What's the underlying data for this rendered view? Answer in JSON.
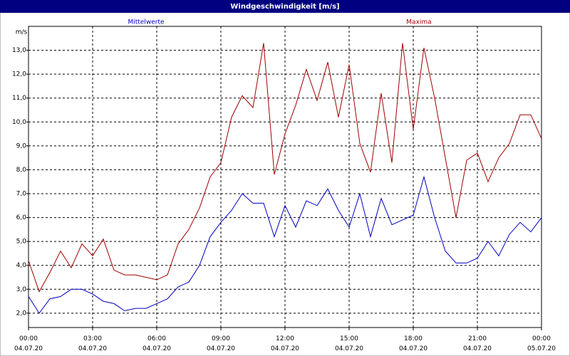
{
  "chart_data": {
    "type": "line",
    "title": "Windgeschwindigkeit [m/s]",
    "ylabel": "m/s",
    "grid": true,
    "xlim": [
      0,
      24
    ],
    "ylim": [
      1.4,
      14
    ],
    "xticks": [
      {
        "value": 0,
        "label": "00:00\n04.07.20"
      },
      {
        "value": 3,
        "label": "03:00\n04.07.20"
      },
      {
        "value": 6,
        "label": "06:00\n04.07.20"
      },
      {
        "value": 9,
        "label": "09:00\n04.07.20"
      },
      {
        "value": 12,
        "label": "12:00\n04.07.20"
      },
      {
        "value": 15,
        "label": "15:00\n04.07.20"
      },
      {
        "value": 18,
        "label": "18:00\n04.07.20"
      },
      {
        "value": 21,
        "label": "21:00\n04.07.20"
      },
      {
        "value": 24,
        "label": "00:00\n05.07.20"
      }
    ],
    "yticks": [
      {
        "value": 2,
        "label": "2,0"
      },
      {
        "value": 3,
        "label": "3,0"
      },
      {
        "value": 4,
        "label": "4,0"
      },
      {
        "value": 5,
        "label": "5,0"
      },
      {
        "value": 6,
        "label": "6,0"
      },
      {
        "value": 7,
        "label": "7,0"
      },
      {
        "value": 8,
        "label": "8,0"
      },
      {
        "value": 9,
        "label": "9,0"
      },
      {
        "value": 10,
        "label": "10,0"
      },
      {
        "value": 11,
        "label": "11,0"
      },
      {
        "value": 12,
        "label": "12,0"
      },
      {
        "value": 13,
        "label": "13,0"
      }
    ],
    "x": [
      0,
      0.5,
      1,
      1.5,
      2,
      2.5,
      3,
      3.5,
      4,
      4.5,
      5,
      5.5,
      6,
      6.5,
      7,
      7.5,
      8,
      8.5,
      9,
      9.5,
      10,
      10.5,
      11,
      11.5,
      12,
      12.5,
      13,
      13.5,
      14,
      14.5,
      15,
      15.5,
      16,
      16.5,
      17,
      17.5,
      18,
      18.5,
      19,
      19.5,
      20,
      20.5,
      21,
      21.5,
      22,
      22.5,
      23,
      23.5,
      24
    ],
    "series": [
      {
        "name": "Mittelwerte",
        "color": "#0000c0",
        "values": [
          2.7,
          2.0,
          2.6,
          2.7,
          3.0,
          3.0,
          2.8,
          2.5,
          2.4,
          2.1,
          2.2,
          2.2,
          2.4,
          2.6,
          3.1,
          3.3,
          4.0,
          5.2,
          5.8,
          6.3,
          7.0,
          6.6,
          6.6,
          5.2,
          6.5,
          5.6,
          6.7,
          6.5,
          7.2,
          6.3,
          5.6,
          7.0,
          5.2,
          6.8,
          5.7,
          5.9,
          6.1,
          7.7,
          6.0,
          4.6,
          4.1,
          4.1,
          4.3,
          5.0,
          4.4,
          5.3,
          5.8,
          5.4,
          6.0
        ]
      },
      {
        "name": "Maxima",
        "color": "#a00000",
        "values": [
          4.2,
          2.9,
          3.7,
          4.6,
          3.9,
          4.9,
          4.4,
          5.1,
          3.8,
          3.6,
          3.6,
          3.5,
          3.4,
          3.6,
          4.9,
          5.5,
          6.4,
          7.7,
          8.3,
          10.2,
          11.1,
          10.6,
          13.3,
          7.8,
          9.5,
          10.7,
          12.2,
          10.9,
          12.5,
          10.2,
          12.4,
          9.1,
          7.9,
          11.2,
          8.3,
          13.3,
          9.7,
          13.1,
          11.0,
          8.5,
          6.0,
          8.4,
          8.7,
          7.5,
          8.5,
          9.1,
          10.3,
          10.3,
          9.3
        ]
      }
    ]
  }
}
